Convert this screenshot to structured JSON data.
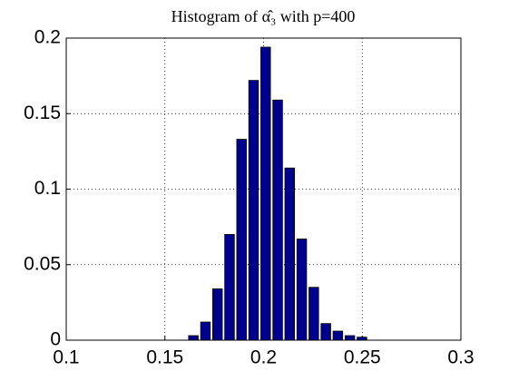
{
  "chart_data": {
    "type": "histogram",
    "title": "Histogram of α̂₃ with p=400",
    "bins": [
      0.1614,
      0.1675,
      0.1736,
      0.1797,
      0.1858,
      0.1919,
      0.198,
      0.2041,
      0.2102,
      0.2163,
      0.2224,
      0.2285,
      0.2346,
      0.2407,
      0.2468,
      0.2529
    ],
    "values": [
      0.003,
      0.012,
      0.034,
      0.07,
      0.133,
      0.172,
      0.194,
      0.159,
      0.114,
      0.067,
      0.035,
      0.011,
      0.006,
      0.003,
      0.002
    ],
    "color": "#00008f",
    "xlim": [
      0.1,
      0.3
    ],
    "xticks": [
      0.1,
      0.15,
      0.2,
      0.25,
      0.3
    ],
    "ylim": [
      0,
      0.2
    ],
    "yticks": [
      0,
      0.05,
      0.1,
      0.15,
      0.2
    ],
    "grid": true
  }
}
